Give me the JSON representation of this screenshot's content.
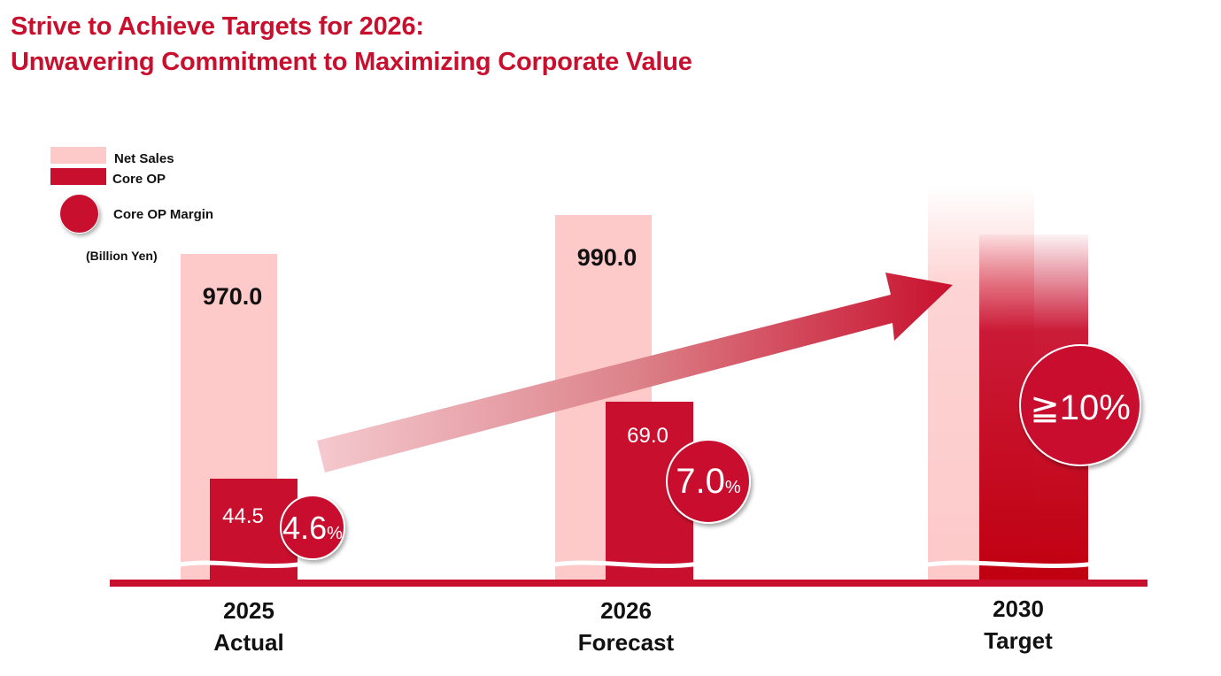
{
  "title": {
    "line1": "Strive to Achieve Targets for 2026:",
    "line2": "Unwavering Commitment to Maximizing Corporate Value"
  },
  "legend": {
    "net_sales": "Net Sales",
    "core_op": "Core OP",
    "core_op_margin": "Core OP Margin"
  },
  "unit_label": "(Billion Yen)",
  "colors": {
    "title": "#c8102e",
    "net_sales": "#fdc9c9",
    "core_op": "#c8102e",
    "margin_circle": "#c8102e",
    "axis": "#c8102e"
  },
  "chart_data": {
    "type": "bar",
    "title": "Strive to Achieve Targets for 2026: Unwavering Commitment to Maximizing Corporate Value",
    "unit": "Billion Yen",
    "categories": [
      {
        "year": "2025",
        "label": "Actual"
      },
      {
        "year": "2026",
        "label": "Forecast"
      },
      {
        "year": "2030",
        "label": "Target"
      }
    ],
    "series": [
      {
        "name": "Net Sales",
        "values": [
          970.0,
          990.0,
          null
        ],
        "labels": [
          "970.0",
          "990.0",
          ""
        ]
      },
      {
        "name": "Core OP",
        "values": [
          44.5,
          69.0,
          null
        ],
        "labels": [
          "44.5",
          "69.0",
          ""
        ]
      },
      {
        "name": "Core OP Margin",
        "values": [
          4.6,
          7.0,
          10
        ],
        "labels": [
          "4.6",
          "7.0",
          "≧10%"
        ],
        "suffix": "%"
      }
    ],
    "annotations": [
      "Upward arrow from 2025 to 2030 indicating growth trend",
      "Axis break on bars"
    ]
  }
}
